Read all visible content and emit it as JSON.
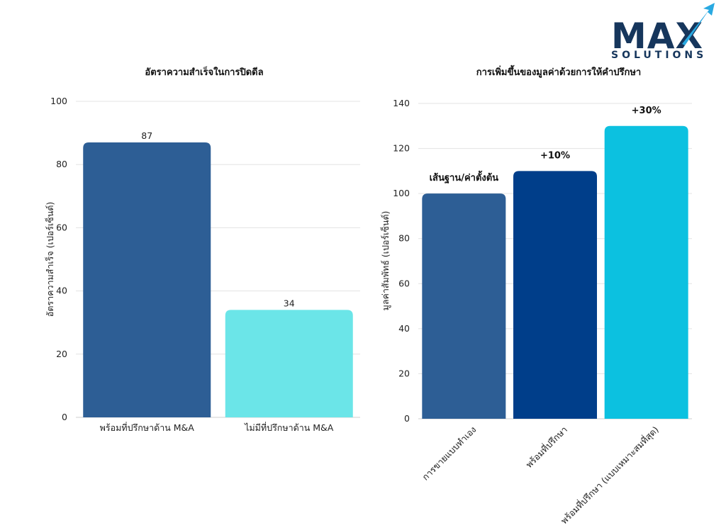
{
  "logo": {
    "main_text": "MAX",
    "sub_text": "SOLUTIONS",
    "colors": {
      "navy": "#16365c",
      "cyan": "#29a9e1"
    }
  },
  "chart_data": [
    {
      "type": "bar",
      "title": "อัตราความสำเร็จในการปิดดีล",
      "xlabel": "",
      "ylabel": "อัตราความสำเร็จ (เปอร์เซ็นต์)",
      "ylim": [
        0,
        100
      ],
      "yticks": [
        0,
        20,
        40,
        60,
        80,
        100
      ],
      "grid": true,
      "categories": [
        "พร้อมที่ปรึกษาด้าน M&A",
        "ไม่มีที่ปรึกษาด้าน M&A"
      ],
      "values": [
        87,
        34
      ],
      "data_labels": [
        "87",
        "34"
      ],
      "colors": [
        "#2d5e95",
        "#6be5e8"
      ]
    },
    {
      "type": "bar",
      "title": "การเพิ่มขึ้นของมูลค่าด้วยการให้คำปรึกษา",
      "xlabel": "",
      "ylabel": "มูลค่าสัมพัทธ์ (เปอร์เซ็นต์)",
      "ylim": [
        0,
        140
      ],
      "yticks": [
        0,
        20,
        40,
        60,
        80,
        100,
        120,
        140
      ],
      "grid": true,
      "categories": [
        "การขายแบบทำเอง",
        "พร้อมที่ปรึกษา",
        "พร้อมที่ปรึกษา (แบบเหมาะสมที่สุด)"
      ],
      "values": [
        100,
        110,
        130
      ],
      "annotations": [
        "เส้นฐาน/ค่าตั้งต้น",
        "+10%",
        "+30%"
      ],
      "colors": [
        "#2d5e95",
        "#003e8a",
        "#0cc1e0"
      ]
    }
  ]
}
